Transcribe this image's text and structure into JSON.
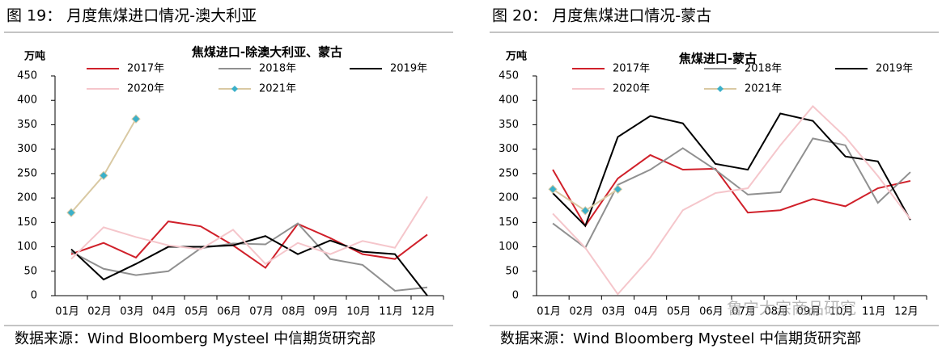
{
  "chart_data": [
    {
      "type": "line",
      "caption": "图 19：   月度焦煤进口情况-澳大利亚",
      "title": "焦煤进口-除澳大利亚、蒙古",
      "y_label": "万吨",
      "source": "数据来源：Wind Bloomberg Mysteel 中信期货研究部",
      "categories": [
        "01月",
        "02月",
        "03月",
        "04月",
        "05月",
        "06月",
        "07月",
        "08月",
        "09月",
        "10月",
        "11月",
        "12月"
      ],
      "ylim": [
        0,
        450
      ],
      "yticks": [
        0,
        50,
        100,
        150,
        200,
        250,
        300,
        350,
        400,
        450
      ],
      "series": [
        {
          "name": "2017年",
          "color": "#d0202a",
          "values": [
            85,
            108,
            78,
            152,
            142,
            103,
            57,
            147,
            118,
            85,
            75,
            125
          ]
        },
        {
          "name": "2018年",
          "color": "#909090",
          "values": [
            90,
            55,
            42,
            50,
            97,
            107,
            105,
            148,
            75,
            63,
            10,
            17
          ]
        },
        {
          "name": "2019年",
          "color": "#000000",
          "values": [
            95,
            33,
            65,
            100,
            100,
            103,
            122,
            85,
            113,
            90,
            85,
            0
          ]
        },
        {
          "name": "2020年",
          "color": "#f5c6cb",
          "values": [
            75,
            140,
            120,
            103,
            95,
            135,
            65,
            108,
            85,
            112,
            98,
            203
          ]
        },
        {
          "name": "2021年",
          "color": "#d9c9a3",
          "marker_color": "#3bb0c9",
          "values": [
            170,
            246,
            362,
            null,
            null,
            null,
            null,
            null,
            null,
            null,
            null,
            null
          ]
        }
      ]
    },
    {
      "type": "line",
      "caption": "图 20：   月度焦煤进口情况-蒙古",
      "title": "焦煤进口-蒙古",
      "y_label": "万吨",
      "source": "数据来源：Wind Bloomberg Mysteel 中信期货研究部",
      "watermark": "鲁宁大宗商品研究",
      "categories": [
        "01月",
        "02月",
        "03月",
        "04月",
        "05月",
        "06月",
        "07月",
        "08月",
        "09月",
        "10月",
        "11月",
        "12月"
      ],
      "ylim": [
        0,
        450
      ],
      "yticks": [
        0,
        50,
        100,
        150,
        200,
        250,
        300,
        350,
        400,
        450
      ],
      "series": [
        {
          "name": "2017年",
          "color": "#d0202a",
          "values": [
            258,
            143,
            240,
            288,
            258,
            260,
            170,
            175,
            198,
            183,
            220,
            235
          ]
        },
        {
          "name": "2018年",
          "color": "#909090",
          "values": [
            148,
            98,
            227,
            258,
            302,
            258,
            207,
            212,
            322,
            308,
            190,
            253
          ]
        },
        {
          "name": "2019年",
          "color": "#000000",
          "values": [
            210,
            143,
            325,
            368,
            353,
            270,
            258,
            373,
            358,
            285,
            275,
            155
          ]
        },
        {
          "name": "2020年",
          "color": "#f5c6cb",
          "values": [
            168,
            98,
            3,
            78,
            175,
            210,
            220,
            308,
            388,
            325,
            245,
            157
          ]
        },
        {
          "name": "2021年",
          "color": "#d9c9a3",
          "marker_color": "#3bb0c9",
          "values": [
            218,
            174,
            218,
            null,
            null,
            null,
            null,
            null,
            null,
            null,
            null,
            null
          ]
        }
      ]
    }
  ]
}
